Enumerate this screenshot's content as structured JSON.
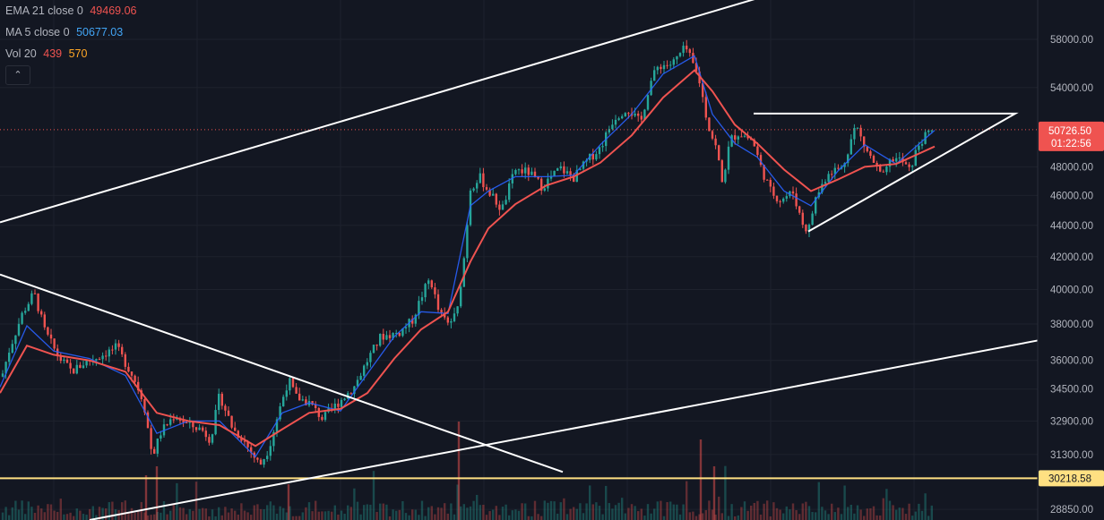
{
  "legend": {
    "ema": {
      "label": "EMA 21 close 0",
      "value": "49469.06",
      "color": "#ef5350"
    },
    "ma": {
      "label": "MA 5 close 0",
      "value": "50677.03",
      "color": "#2962ff"
    },
    "vol": {
      "label": "Vol 20",
      "value1": "439",
      "value2": "570",
      "color1": "#ef5350",
      "color2": "#ff9800"
    },
    "collapse_icon": "chevron-up-icon"
  },
  "chart_data": {
    "type": "candlestick",
    "y_scale": "log",
    "ylim": [
      28400,
      61500
    ],
    "y_ticks": [
      "58000.00",
      "54000.00",
      "48000.00",
      "46000.00",
      "44000.00",
      "42000.00",
      "40000.00",
      "38000.00",
      "36000.00",
      "34500.00",
      "32900.00",
      "31300.00",
      "28850.00"
    ],
    "price_badge": {
      "price": "50726.50",
      "countdown": "01:22:56",
      "color": "#ef5350"
    },
    "level_badge": {
      "price": "30218.58",
      "color": "#ffe082"
    },
    "horizontal_level": 30218.58,
    "series": [
      {
        "name": "EMA 21",
        "color": "#ef5350"
      },
      {
        "name": "MA 5",
        "color": "#2962ff"
      }
    ],
    "colors": {
      "up": "#26a69a",
      "down": "#ef5350",
      "background": "#131722",
      "grid": "#1e222d",
      "drawing": "#ffffff"
    },
    "price_path": [
      [
        0,
        34800
      ],
      [
        10,
        36500
      ],
      [
        25,
        38600
      ],
      [
        38,
        39800
      ],
      [
        50,
        37600
      ],
      [
        65,
        36200
      ],
      [
        80,
        35400
      ],
      [
        95,
        35900
      ],
      [
        110,
        36200
      ],
      [
        130,
        36700
      ],
      [
        148,
        35200
      ],
      [
        160,
        33900
      ],
      [
        170,
        31200
      ],
      [
        180,
        32400
      ],
      [
        195,
        33200
      ],
      [
        210,
        32700
      ],
      [
        225,
        32500
      ],
      [
        235,
        32000
      ],
      [
        245,
        34200
      ],
      [
        260,
        32500
      ],
      [
        270,
        32100
      ],
      [
        282,
        31300
      ],
      [
        290,
        30800
      ],
      [
        300,
        31600
      ],
      [
        312,
        33500
      ],
      [
        322,
        35000
      ],
      [
        330,
        34100
      ],
      [
        345,
        33800
      ],
      [
        360,
        33000
      ],
      [
        375,
        33700
      ],
      [
        395,
        34600
      ],
      [
        410,
        36000
      ],
      [
        425,
        37300
      ],
      [
        445,
        37500
      ],
      [
        460,
        38200
      ],
      [
        472,
        39800
      ],
      [
        480,
        40700
      ],
      [
        490,
        38600
      ],
      [
        500,
        38000
      ],
      [
        510,
        38600
      ],
      [
        518,
        42000
      ],
      [
        525,
        46500
      ],
      [
        535,
        47300
      ],
      [
        545,
        46300
      ],
      [
        560,
        45000
      ],
      [
        575,
        47800
      ],
      [
        590,
        47600
      ],
      [
        605,
        46600
      ],
      [
        625,
        47900
      ],
      [
        640,
        47200
      ],
      [
        655,
        48400
      ],
      [
        670,
        49400
      ],
      [
        685,
        51600
      ],
      [
        700,
        52400
      ],
      [
        715,
        51200
      ],
      [
        725,
        54300
      ],
      [
        735,
        55800
      ],
      [
        750,
        55900
      ],
      [
        765,
        57300
      ],
      [
        772,
        56100
      ],
      [
        780,
        54700
      ],
      [
        790,
        51100
      ],
      [
        800,
        49200
      ],
      [
        806,
        46800
      ],
      [
        815,
        50000
      ],
      [
        825,
        50500
      ],
      [
        840,
        49900
      ],
      [
        850,
        47800
      ],
      [
        860,
        46300
      ],
      [
        870,
        45700
      ],
      [
        885,
        46200
      ],
      [
        895,
        44200
      ],
      [
        902,
        43600
      ],
      [
        910,
        45800
      ],
      [
        925,
        47700
      ],
      [
        940,
        47900
      ],
      [
        955,
        51100
      ],
      [
        965,
        49400
      ],
      [
        975,
        48300
      ],
      [
        985,
        47200
      ],
      [
        995,
        48600
      ],
      [
        1005,
        48500
      ],
      [
        1015,
        47700
      ],
      [
        1025,
        49600
      ],
      [
        1035,
        50400
      ],
      [
        1043,
        50726.5
      ]
    ],
    "ema_path": [
      [
        0,
        34300
      ],
      [
        30,
        36800
      ],
      [
        60,
        36300
      ],
      [
        100,
        36000
      ],
      [
        140,
        35400
      ],
      [
        175,
        33300
      ],
      [
        210,
        32900
      ],
      [
        245,
        32700
      ],
      [
        285,
        31700
      ],
      [
        315,
        32500
      ],
      [
        345,
        33300
      ],
      [
        380,
        33500
      ],
      [
        410,
        34300
      ],
      [
        440,
        36100
      ],
      [
        470,
        37700
      ],
      [
        500,
        38700
      ],
      [
        525,
        41700
      ],
      [
        545,
        43800
      ],
      [
        575,
        45400
      ],
      [
        610,
        46700
      ],
      [
        640,
        47300
      ],
      [
        670,
        48300
      ],
      [
        705,
        50300
      ],
      [
        740,
        53200
      ],
      [
        775,
        55400
      ],
      [
        795,
        53700
      ],
      [
        820,
        51100
      ],
      [
        845,
        49700
      ],
      [
        875,
        47800
      ],
      [
        905,
        46300
      ],
      [
        935,
        47100
      ],
      [
        965,
        48000
      ],
      [
        1000,
        48200
      ],
      [
        1043,
        49469
      ]
    ],
    "ma_path": [
      [
        0,
        34600
      ],
      [
        30,
        37900
      ],
      [
        60,
        36500
      ],
      [
        100,
        36100
      ],
      [
        140,
        35200
      ],
      [
        175,
        32300
      ],
      [
        210,
        32900
      ],
      [
        245,
        32900
      ],
      [
        285,
        31200
      ],
      [
        315,
        33300
      ],
      [
        345,
        33800
      ],
      [
        380,
        33400
      ],
      [
        410,
        35300
      ],
      [
        440,
        37300
      ],
      [
        470,
        38700
      ],
      [
        500,
        38600
      ],
      [
        525,
        45300
      ],
      [
        545,
        46300
      ],
      [
        575,
        47300
      ],
      [
        610,
        47300
      ],
      [
        640,
        47400
      ],
      [
        670,
        49600
      ],
      [
        705,
        51900
      ],
      [
        740,
        55100
      ],
      [
        775,
        56600
      ],
      [
        795,
        51900
      ],
      [
        820,
        49700
      ],
      [
        845,
        48700
      ],
      [
        875,
        46300
      ],
      [
        905,
        45300
      ],
      [
        935,
        47700
      ],
      [
        965,
        49600
      ],
      [
        1000,
        48200
      ],
      [
        1043,
        50677
      ]
    ],
    "annotations": [
      {
        "type": "line",
        "points": [
          [
            0,
            44200
          ],
          [
            900,
            63000
          ]
        ]
      },
      {
        "type": "line",
        "points": [
          [
            0,
            40900
          ],
          [
            628,
            30500
          ]
        ]
      },
      {
        "type": "line",
        "points": [
          [
            100,
            28400
          ],
          [
            1160,
            37100
          ]
        ]
      },
      {
        "type": "triangle",
        "top": 51950,
        "apex_low": 43600
      }
    ]
  }
}
